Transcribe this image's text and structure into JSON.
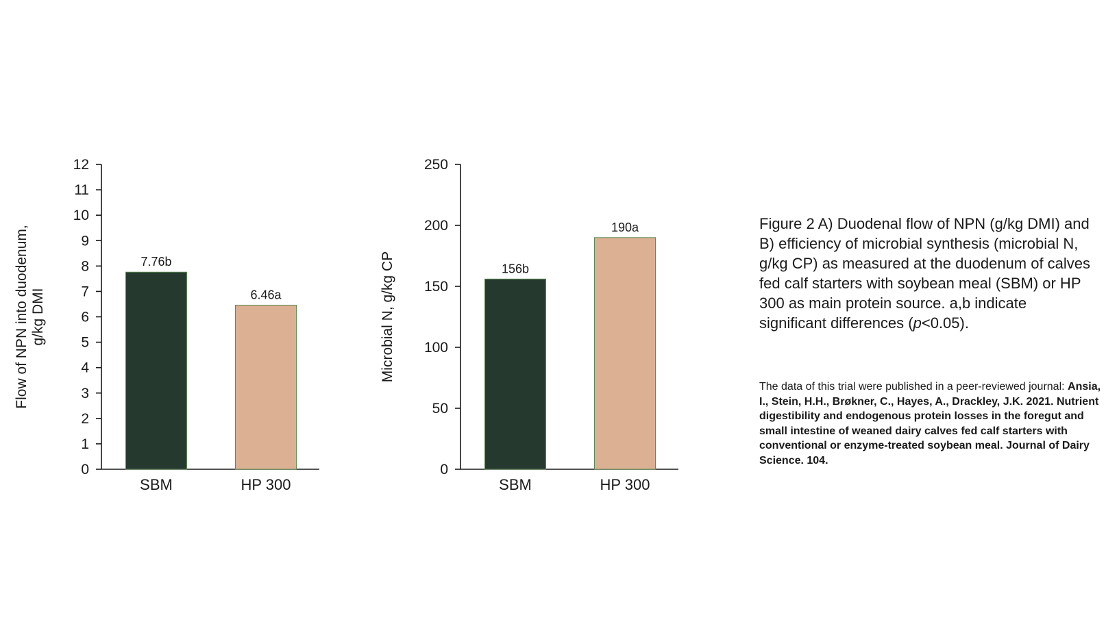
{
  "chart_data": [
    {
      "type": "bar",
      "title": "",
      "xlabel": "",
      "ylabel": "Flow of NPN into duodenum, g/kg DMI",
      "ylabel_lines": [
        "Flow of NPN into duodenum,",
        "g/kg DMI"
      ],
      "categories": [
        "SBM",
        "HP 300"
      ],
      "values": [
        7.76,
        6.46
      ],
      "data_labels": [
        "7.76b",
        "6.46a"
      ],
      "ylim": [
        0,
        12
      ],
      "yticks": [
        0,
        1,
        2,
        3,
        4,
        5,
        6,
        7,
        8,
        9,
        10,
        11,
        12
      ],
      "ytick_labels": [
        "0",
        "1",
        "2",
        "3",
        "4",
        "5",
        "6",
        "7",
        "8",
        "9",
        "10",
        "11",
        "12"
      ],
      "bar_colors": [
        "#25392e",
        "#dcb193"
      ],
      "grid": false,
      "legend": "none"
    },
    {
      "type": "bar",
      "title": "",
      "xlabel": "",
      "ylabel": "Microbial N, g/kg CP",
      "ylabel_lines": [
        "Microbial N, g/kg CP"
      ],
      "categories": [
        "SBM",
        "HP 300"
      ],
      "values": [
        156,
        190
      ],
      "data_labels": [
        "156b",
        "190a"
      ],
      "ylim": [
        0,
        250
      ],
      "yticks": [
        0,
        50,
        100,
        150,
        200,
        250
      ],
      "ytick_labels": [
        "0",
        "50",
        "100",
        "150",
        "200",
        "250"
      ],
      "bar_colors": [
        "#25392e",
        "#dcb193"
      ],
      "grid": false,
      "legend": "none"
    }
  ],
  "caption": {
    "main": "Figure 2 A) Duodenal flow of NPN (g/kg DMI) and B) efficiency of microbial synthesis (microbial N, g/kg CP) as measured at the duodenum of calves fed calf starters with soybean meal (SBM) or HP 300 as main protein source. a,b indicate significant differences (",
    "italic": "p",
    "end": "<0.05)."
  },
  "citation": {
    "intro": "The data of this trial were published in a peer-reviewed journal: ",
    "reference": "Ansia, I., Stein, H.H., Brøkner, C., Hayes, A., Drackley, J.K. 2021. Nutrient digestibility and endogenous protein losses in the foregut and small intestine of weaned dairy calves fed calf starters with conventional or enzyme-treated soybean meal. Journal of Dairy Science. 104."
  }
}
